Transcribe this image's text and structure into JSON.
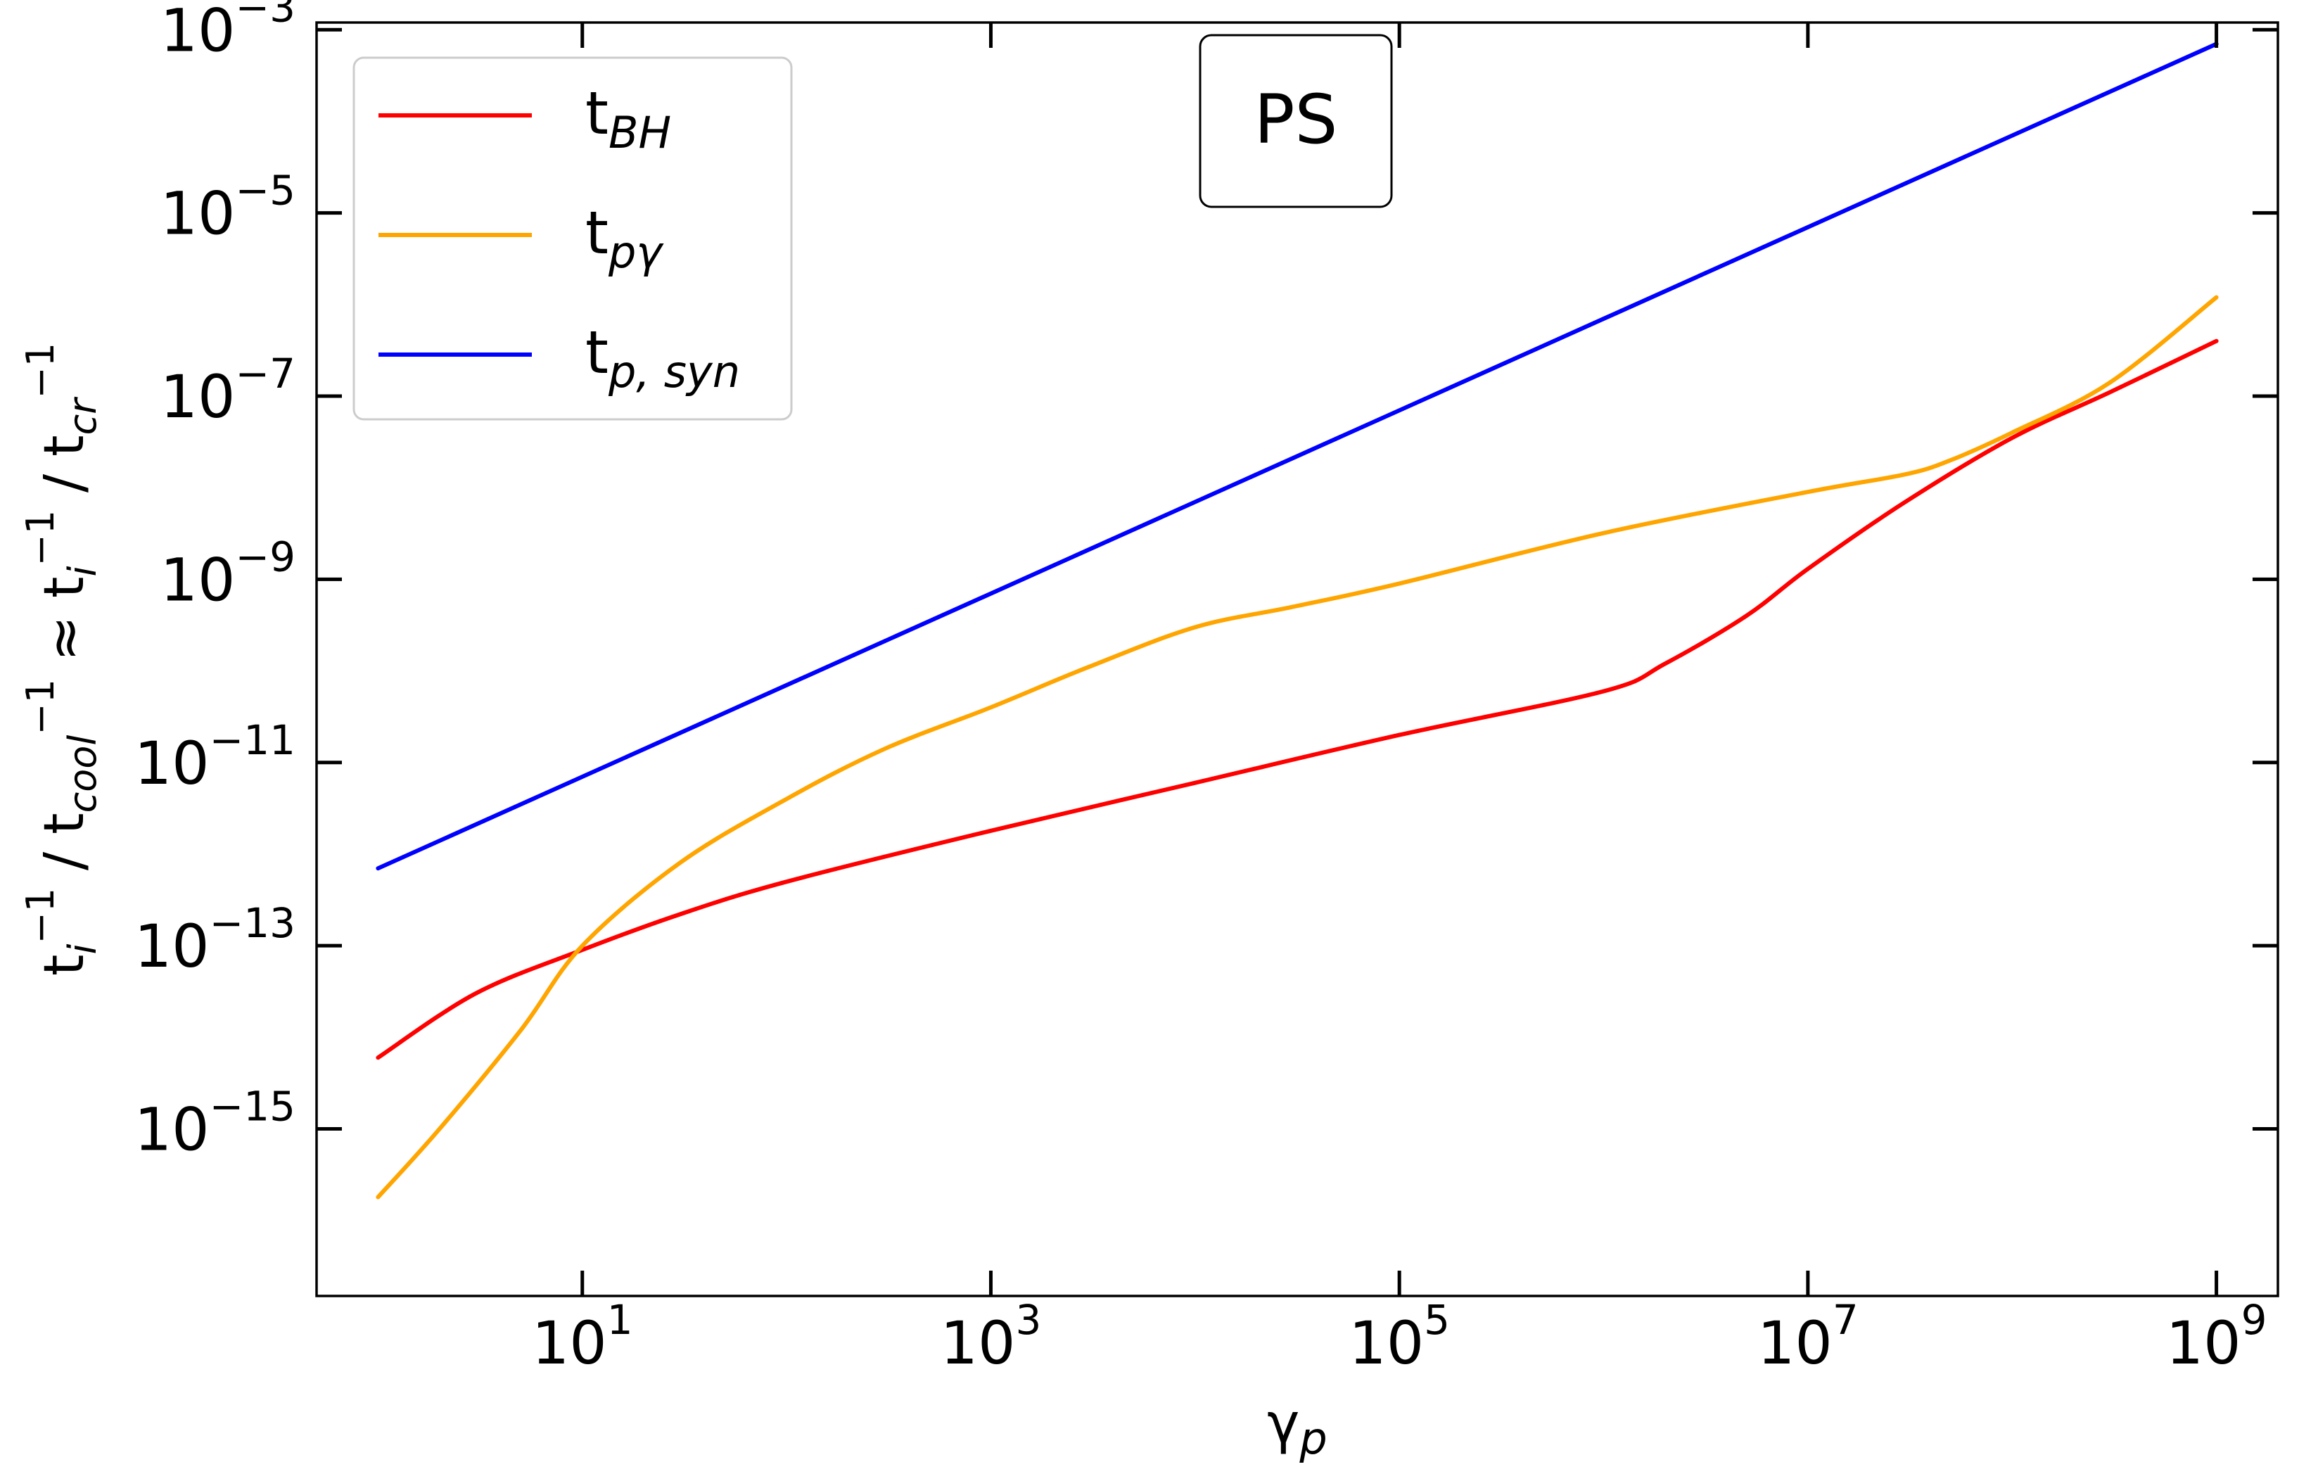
{
  "chart_data": {
    "type": "line",
    "xscale": "log",
    "yscale": "log",
    "xlim": [
      0.5,
      2000000000
    ],
    "ylim": [
      1.5e-17,
      0.0012
    ],
    "xticks": [
      10,
      1000,
      100000,
      10000000,
      1000000000
    ],
    "xtick_labels": [
      {
        "base": "10",
        "exp": "1"
      },
      {
        "base": "10",
        "exp": "3"
      },
      {
        "base": "10",
        "exp": "5"
      },
      {
        "base": "10",
        "exp": "7"
      },
      {
        "base": "10",
        "exp": "9"
      }
    ],
    "yticks": [
      1e-15,
      1e-13,
      1e-11,
      1e-09,
      1e-07,
      1e-05,
      0.001
    ],
    "ytick_labels": [
      {
        "base": "10",
        "exp": "−15"
      },
      {
        "base": "10",
        "exp": "−13"
      },
      {
        "base": "10",
        "exp": "−11"
      },
      {
        "base": "10",
        "exp": "−9"
      },
      {
        "base": "10",
        "exp": "−7"
      },
      {
        "base": "10",
        "exp": "−5"
      },
      {
        "base": "10",
        "exp": "−3"
      }
    ],
    "xlabel": {
      "base": "γ",
      "sub": "p"
    },
    "ylabel": "t_i^{-1} / t_cool^{-1} ≈ t_i^{-1} / t_cr^{-1}",
    "annotation": "PS",
    "legend_position": "top-left",
    "grid": false,
    "series": [
      {
        "name": "t_BH",
        "legend_base": "t",
        "legend_sub": "BH",
        "color": "#ff0000",
        "x": [
          1,
          3,
          10,
          30,
          100,
          1000,
          10000,
          100000,
          1000000,
          2000000,
          5000000,
          10000000,
          30000000,
          100000000,
          300000000,
          1000000000
        ],
        "y": [
          6e-15,
          3e-14,
          9e-14,
          2.2e-13,
          5e-13,
          1.8e-12,
          6e-12,
          2e-11,
          6e-11,
          1.2e-10,
          4e-10,
          1.3e-09,
          7e-09,
          3.5e-08,
          1.1e-07,
          4e-07
        ]
      },
      {
        "name": "t_pγ",
        "legend_base": "t",
        "legend_sub": "pγ",
        "color": "#ffa500",
        "x": [
          1,
          2,
          5,
          10,
          30,
          100,
          300,
          1000,
          3000,
          10000,
          30000,
          100000,
          1000000,
          10000000,
          30000000,
          50000000,
          100000000,
          300000000,
          1000000000
        ],
        "y": [
          1.8e-16,
          1e-15,
          1.2e-14,
          1e-13,
          8e-13,
          4e-12,
          1.4e-11,
          4e-11,
          1.1e-10,
          3e-10,
          5e-10,
          9e-10,
          3.2e-09,
          9e-09,
          1.4e-08,
          2e-08,
          4e-08,
          1.4e-07,
          1.2e-06
        ]
      },
      {
        "name": "t_p,syn",
        "legend_base": "t",
        "legend_sub": "p, syn",
        "color": "#0000ff",
        "x": [
          1,
          1000000000
        ],
        "y": [
          7e-13,
          0.0007
        ]
      }
    ]
  }
}
